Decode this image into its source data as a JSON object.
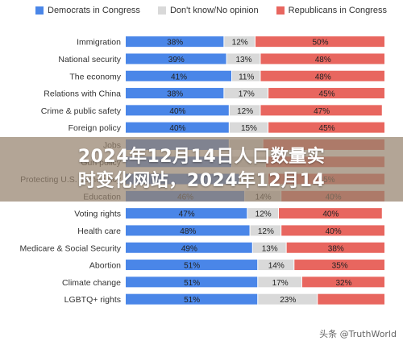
{
  "chart_data": {
    "type": "bar",
    "stacked": true,
    "orientation": "horizontal",
    "categories": [
      "Immigration",
      "National security",
      "The economy",
      "Relations with China",
      "Crime & public safety",
      "Foreign policy",
      "Jobs",
      "Gun policy",
      "Protecting U.S. democracy",
      "Education",
      "Voting rights",
      "Health care",
      "Medicare & Social Security",
      "Abortion",
      "Climate change",
      "LGBTQ+ rights"
    ],
    "series": [
      {
        "name": "Democrats in Congress",
        "color": "#4a86e8",
        "values": [
          38,
          39,
          41,
          38,
          40,
          40,
          40,
          41,
          44,
          46,
          47,
          48,
          49,
          51,
          51,
          51
        ]
      },
      {
        "name": "Don't know/No opinion",
        "color": "#d9d9d9",
        "values": [
          12,
          13,
          11,
          17,
          12,
          15,
          13,
          13,
          11,
          14,
          12,
          12,
          13,
          14,
          17,
          23
        ]
      },
      {
        "name": "Republicans in Congress",
        "color": "#e8665f",
        "values": [
          50,
          48,
          48,
          45,
          47,
          45,
          47,
          46,
          45,
          40,
          40,
          40,
          38,
          35,
          32,
          26
        ]
      }
    ],
    "data_labels": [
      [
        "38%",
        "12%",
        "50%"
      ],
      [
        "39%",
        "13%",
        "48%"
      ],
      [
        "41%",
        "11%",
        "48%"
      ],
      [
        "38%",
        "17%",
        "45%"
      ],
      [
        "40%",
        "12%",
        "47%"
      ],
      [
        "40%",
        "15%",
        "45%"
      ],
      [
        "",
        "",
        ""
      ],
      [
        "",
        "",
        ""
      ],
      [
        "",
        "",
        "45%"
      ],
      [
        "46%",
        "14%",
        "40%"
      ],
      [
        "47%",
        "12%",
        "40%"
      ],
      [
        "48%",
        "12%",
        "40%"
      ],
      [
        "49%",
        "13%",
        "38%"
      ],
      [
        "51%",
        "14%",
        "35%"
      ],
      [
        "51%",
        "17%",
        "32%"
      ],
      [
        "51%",
        "23%",
        ""
      ]
    ],
    "xlim": [
      0,
      100
    ],
    "legend_position": "top"
  },
  "overlay_title": "2024年12月14日人口数量实\n时变化网站，2024年12月14",
  "watermark": "头条 @TruthWorld"
}
